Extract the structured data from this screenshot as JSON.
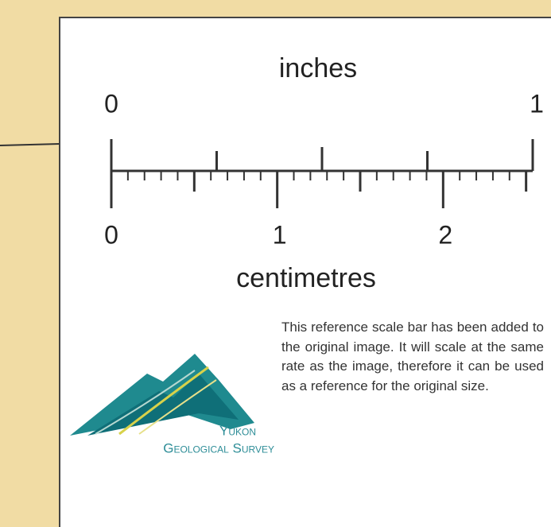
{
  "scale_bar": {
    "top_label": "inches",
    "inch_labels": [
      0,
      1
    ],
    "bottom_label": "centimetres",
    "cm_labels": [
      0,
      1,
      2
    ]
  },
  "logo": {
    "line1": "Yukon",
    "line2": "Geological Survey"
  },
  "note": "This reference scale bar has been added to the original image. It will scale at the same rate as the image, therefore it can be used as a reference for the original size."
}
